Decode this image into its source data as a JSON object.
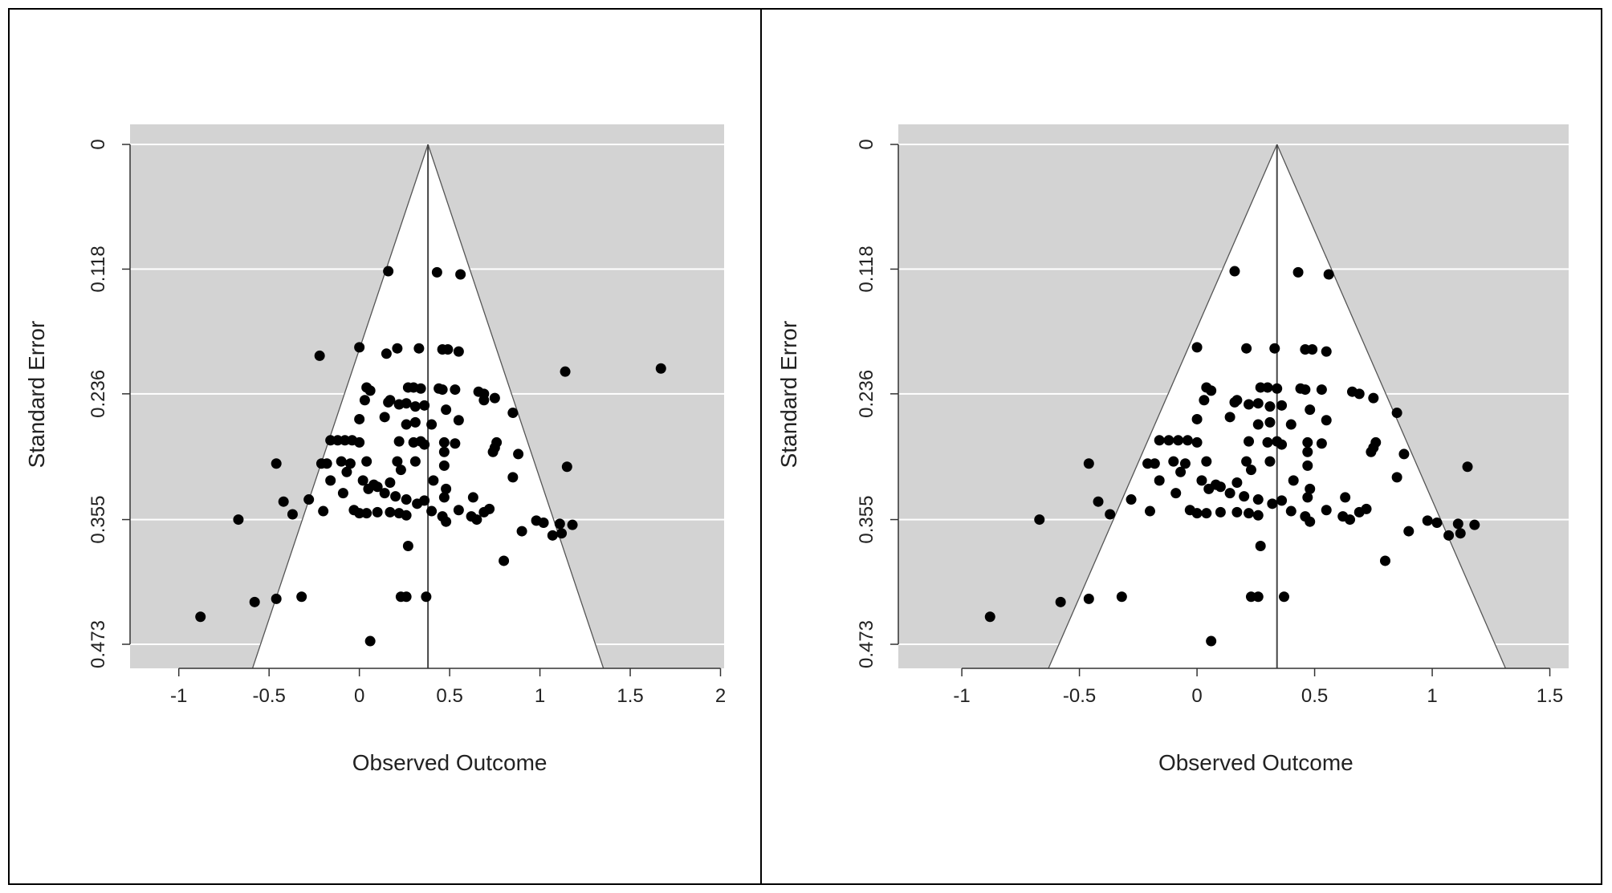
{
  "chart_data": [
    {
      "type": "scatter",
      "subtype": "funnel",
      "xlabel": "Observed Outcome",
      "ylabel": "Standard Error",
      "xlim": [
        -1.27,
        2.02
      ],
      "ylim": [
        0.473,
        0
      ],
      "xticks": [
        -1,
        -0.5,
        0,
        0.5,
        1,
        1.5,
        2
      ],
      "xtick_labels": [
        "-1",
        "-0.5",
        "0",
        "0.5",
        "1",
        "1.5",
        "2"
      ],
      "yticks": [
        0,
        0.118,
        0.236,
        0.355,
        0.473
      ],
      "ytick_labels": [
        "0",
        "0.118",
        "0.236",
        "0.355",
        "0.473"
      ],
      "center": 0.38,
      "background": "#d3d3d3",
      "funnel_fill": "#ffffff",
      "gridlines": true,
      "points": [
        [
          0.16,
          0.12
        ],
        [
          0.43,
          0.121
        ],
        [
          0.56,
          0.123
        ],
        [
          -0.22,
          0.2
        ],
        [
          0.0,
          0.192
        ],
        [
          0.21,
          0.193
        ],
        [
          0.33,
          0.193
        ],
        [
          0.46,
          0.194
        ],
        [
          0.49,
          0.194
        ],
        [
          0.55,
          0.196
        ],
        [
          0.15,
          0.198
        ],
        [
          0.04,
          0.23
        ],
        [
          0.06,
          0.233
        ],
        [
          0.27,
          0.23
        ],
        [
          0.3,
          0.23
        ],
        [
          0.34,
          0.231
        ],
        [
          0.44,
          0.231
        ],
        [
          0.46,
          0.232
        ],
        [
          0.53,
          0.232
        ],
        [
          0.66,
          0.234
        ],
        [
          0.69,
          0.236
        ],
        [
          0.75,
          0.24
        ],
        [
          1.14,
          0.215
        ],
        [
          1.67,
          0.212
        ],
        [
          0.03,
          0.242
        ],
        [
          0.16,
          0.244
        ],
        [
          0.17,
          0.242
        ],
        [
          0.22,
          0.246
        ],
        [
          0.26,
          0.245
        ],
        [
          0.31,
          0.248
        ],
        [
          0.36,
          0.247
        ],
        [
          0.48,
          0.251
        ],
        [
          0.69,
          0.242
        ],
        [
          0.85,
          0.254
        ],
        [
          0.0,
          0.26
        ],
        [
          0.14,
          0.258
        ],
        [
          0.26,
          0.265
        ],
        [
          0.31,
          0.263
        ],
        [
          0.4,
          0.265
        ],
        [
          0.55,
          0.261
        ],
        [
          -0.12,
          0.28
        ],
        [
          -0.08,
          0.28
        ],
        [
          -0.04,
          0.28
        ],
        [
          -0.16,
          0.28
        ],
        [
          0.0,
          0.282
        ],
        [
          0.22,
          0.281
        ],
        [
          0.3,
          0.282
        ],
        [
          0.34,
          0.281
        ],
        [
          0.36,
          0.284
        ],
        [
          0.47,
          0.282
        ],
        [
          0.53,
          0.283
        ],
        [
          0.76,
          0.282
        ],
        [
          0.88,
          0.293
        ],
        [
          -0.46,
          0.302
        ],
        [
          -0.21,
          0.302
        ],
        [
          -0.18,
          0.302
        ],
        [
          -0.1,
          0.3
        ],
        [
          -0.05,
          0.302
        ],
        [
          0.04,
          0.3
        ],
        [
          0.21,
          0.3
        ],
        [
          0.23,
          0.308
        ],
        [
          0.31,
          0.3
        ],
        [
          0.47,
          0.291
        ],
        [
          0.47,
          0.304
        ],
        [
          0.74,
          0.291
        ],
        [
          0.75,
          0.287
        ],
        [
          1.15,
          0.305
        ],
        [
          -0.16,
          0.318
        ],
        [
          -0.07,
          0.31
        ],
        [
          0.02,
          0.318
        ],
        [
          0.08,
          0.322
        ],
        [
          0.1,
          0.324
        ],
        [
          0.17,
          0.32
        ],
        [
          0.41,
          0.318
        ],
        [
          0.48,
          0.326
        ],
        [
          0.85,
          0.315
        ],
        [
          -0.42,
          0.338
        ],
        [
          -0.28,
          0.336
        ],
        [
          -0.09,
          0.33
        ],
        [
          0.05,
          0.326
        ],
        [
          0.14,
          0.33
        ],
        [
          0.2,
          0.333
        ],
        [
          0.26,
          0.336
        ],
        [
          0.32,
          0.34
        ],
        [
          0.36,
          0.337
        ],
        [
          0.47,
          0.334
        ],
        [
          0.63,
          0.334
        ],
        [
          0.72,
          0.345
        ],
        [
          -0.37,
          0.35
        ],
        [
          -0.2,
          0.347
        ],
        [
          -0.03,
          0.346
        ],
        [
          0.0,
          0.349
        ],
        [
          0.04,
          0.349
        ],
        [
          0.1,
          0.348
        ],
        [
          0.17,
          0.348
        ],
        [
          0.22,
          0.349
        ],
        [
          0.26,
          0.351
        ],
        [
          0.4,
          0.347
        ],
        [
          0.46,
          0.352
        ],
        [
          0.55,
          0.346
        ],
        [
          0.62,
          0.352
        ],
        [
          0.65,
          0.355
        ],
        [
          0.69,
          0.348
        ],
        [
          0.48,
          0.357
        ],
        [
          -0.67,
          0.355
        ],
        [
          0.98,
          0.356
        ],
        [
          1.02,
          0.358
        ],
        [
          1.11,
          0.359
        ],
        [
          1.18,
          0.36
        ],
        [
          0.9,
          0.366
        ],
        [
          1.07,
          0.37
        ],
        [
          1.12,
          0.368
        ],
        [
          0.27,
          0.38
        ],
        [
          0.8,
          0.394
        ],
        [
          -0.46,
          0.43
        ],
        [
          -0.58,
          0.433
        ],
        [
          -0.32,
          0.428
        ],
        [
          0.23,
          0.428
        ],
        [
          0.26,
          0.428
        ],
        [
          0.37,
          0.428
        ],
        [
          -0.88,
          0.447
        ],
        [
          0.06,
          0.47
        ]
      ]
    },
    {
      "type": "scatter",
      "subtype": "funnel",
      "xlabel": "Observed Outcome",
      "ylabel": "Standard Error",
      "xlim": [
        -1.27,
        1.58
      ],
      "ylim": [
        0.473,
        0
      ],
      "xticks": [
        -1,
        -0.5,
        0,
        0.5,
        1,
        1.5
      ],
      "xtick_labels": [
        "-1",
        "-0.5",
        "0",
        "0.5",
        "1",
        "1.5"
      ],
      "yticks": [
        0,
        0.118,
        0.236,
        0.355,
        0.473
      ],
      "ytick_labels": [
        "0",
        "0.118",
        "0.236",
        "0.355",
        "0.473"
      ],
      "center": 0.34,
      "background": "#d3d3d3",
      "funnel_fill": "#ffffff",
      "gridlines": true,
      "points": [
        [
          0.16,
          0.12
        ],
        [
          0.43,
          0.121
        ],
        [
          0.56,
          0.123
        ],
        [
          0.0,
          0.192
        ],
        [
          0.21,
          0.193
        ],
        [
          0.33,
          0.193
        ],
        [
          0.46,
          0.194
        ],
        [
          0.49,
          0.194
        ],
        [
          0.55,
          0.196
        ],
        [
          0.04,
          0.23
        ],
        [
          0.06,
          0.233
        ],
        [
          0.27,
          0.23
        ],
        [
          0.3,
          0.23
        ],
        [
          0.34,
          0.231
        ],
        [
          0.44,
          0.231
        ],
        [
          0.46,
          0.232
        ],
        [
          0.53,
          0.232
        ],
        [
          0.66,
          0.234
        ],
        [
          0.69,
          0.236
        ],
        [
          0.75,
          0.24
        ],
        [
          0.03,
          0.242
        ],
        [
          0.16,
          0.244
        ],
        [
          0.17,
          0.242
        ],
        [
          0.22,
          0.246
        ],
        [
          0.26,
          0.245
        ],
        [
          0.31,
          0.248
        ],
        [
          0.36,
          0.247
        ],
        [
          0.48,
          0.251
        ],
        [
          0.85,
          0.254
        ],
        [
          0.0,
          0.26
        ],
        [
          0.14,
          0.258
        ],
        [
          0.26,
          0.265
        ],
        [
          0.31,
          0.263
        ],
        [
          0.4,
          0.265
        ],
        [
          0.55,
          0.261
        ],
        [
          -0.12,
          0.28
        ],
        [
          -0.08,
          0.28
        ],
        [
          -0.04,
          0.28
        ],
        [
          -0.16,
          0.28
        ],
        [
          0.0,
          0.282
        ],
        [
          0.22,
          0.281
        ],
        [
          0.3,
          0.282
        ],
        [
          0.34,
          0.281
        ],
        [
          0.36,
          0.284
        ],
        [
          0.47,
          0.282
        ],
        [
          0.53,
          0.283
        ],
        [
          0.76,
          0.282
        ],
        [
          0.88,
          0.293
        ],
        [
          -0.46,
          0.302
        ],
        [
          -0.21,
          0.302
        ],
        [
          -0.18,
          0.302
        ],
        [
          -0.1,
          0.3
        ],
        [
          -0.05,
          0.302
        ],
        [
          0.04,
          0.3
        ],
        [
          0.21,
          0.3
        ],
        [
          0.23,
          0.308
        ],
        [
          0.31,
          0.3
        ],
        [
          0.47,
          0.291
        ],
        [
          0.47,
          0.304
        ],
        [
          0.74,
          0.291
        ],
        [
          0.75,
          0.287
        ],
        [
          1.15,
          0.305
        ],
        [
          -0.16,
          0.318
        ],
        [
          -0.07,
          0.31
        ],
        [
          0.02,
          0.318
        ],
        [
          0.08,
          0.322
        ],
        [
          0.1,
          0.324
        ],
        [
          0.17,
          0.32
        ],
        [
          0.41,
          0.318
        ],
        [
          0.48,
          0.326
        ],
        [
          0.85,
          0.315
        ],
        [
          -0.42,
          0.338
        ],
        [
          -0.28,
          0.336
        ],
        [
          -0.09,
          0.33
        ],
        [
          0.05,
          0.326
        ],
        [
          0.14,
          0.33
        ],
        [
          0.2,
          0.333
        ],
        [
          0.26,
          0.336
        ],
        [
          0.32,
          0.34
        ],
        [
          0.36,
          0.337
        ],
        [
          0.47,
          0.334
        ],
        [
          0.63,
          0.334
        ],
        [
          0.72,
          0.345
        ],
        [
          -0.37,
          0.35
        ],
        [
          -0.2,
          0.347
        ],
        [
          -0.03,
          0.346
        ],
        [
          0.0,
          0.349
        ],
        [
          0.04,
          0.349
        ],
        [
          0.1,
          0.348
        ],
        [
          0.17,
          0.348
        ],
        [
          0.22,
          0.349
        ],
        [
          0.26,
          0.351
        ],
        [
          0.4,
          0.347
        ],
        [
          0.46,
          0.352
        ],
        [
          0.55,
          0.346
        ],
        [
          0.62,
          0.352
        ],
        [
          0.65,
          0.355
        ],
        [
          0.69,
          0.348
        ],
        [
          0.48,
          0.357
        ],
        [
          -0.67,
          0.355
        ],
        [
          0.98,
          0.356
        ],
        [
          1.02,
          0.358
        ],
        [
          1.11,
          0.359
        ],
        [
          1.18,
          0.36
        ],
        [
          0.9,
          0.366
        ],
        [
          1.07,
          0.37
        ],
        [
          1.12,
          0.368
        ],
        [
          0.27,
          0.38
        ],
        [
          0.8,
          0.394
        ],
        [
          -0.46,
          0.43
        ],
        [
          -0.58,
          0.433
        ],
        [
          -0.32,
          0.428
        ],
        [
          0.23,
          0.428
        ],
        [
          0.26,
          0.428
        ],
        [
          0.37,
          0.428
        ],
        [
          -0.88,
          0.447
        ],
        [
          0.06,
          0.47
        ]
      ]
    }
  ]
}
